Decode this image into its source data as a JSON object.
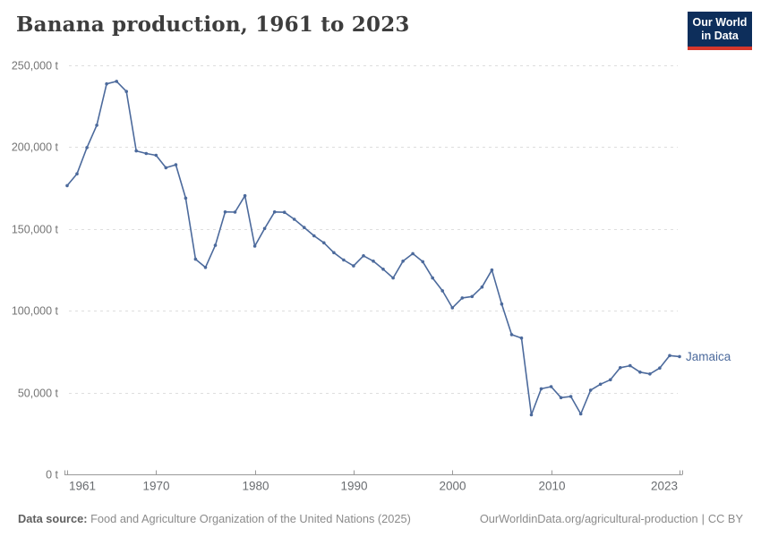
{
  "header": {
    "title": "Banana production, 1961 to 2023",
    "logo": {
      "line1": "Our World",
      "line2": "in Data"
    }
  },
  "footer": {
    "source_label": "Data source:",
    "source_text": "Food and Agriculture Organization of the United Nations (2025)",
    "link_text": "OurWorldinData.org/agricultural-production",
    "divider": "|",
    "license": "CC BY"
  },
  "colors": {
    "line": "#4C6A9C",
    "grid": "#dedede",
    "axis": "#9a9a9a",
    "tick_text": "#696c70",
    "ylabel_text": "#757575",
    "logo_bg": "#0d2e5b",
    "logo_bar": "#d6372c"
  },
  "chart_data": {
    "type": "line",
    "title": "Banana production, 1961 to 2023",
    "unit": "t",
    "xlabel": "",
    "ylabel": "",
    "xlim": [
      1961,
      2023
    ],
    "x_step": 1,
    "ylim": [
      0,
      250000
    ],
    "grid": "dashed-horizontal",
    "legend": "end-of-line-label",
    "xticks": [
      1961,
      1970,
      1980,
      1990,
      2000,
      2010,
      2023
    ],
    "yticks": [
      0,
      50000,
      100000,
      150000,
      200000,
      250000
    ],
    "ytick_labels": [
      "0 t",
      "50,000 t",
      "100,000 t",
      "150,000 t",
      "200,000 t",
      "250,000 t"
    ],
    "series": [
      {
        "name": "Jamaica",
        "color": "#4C6A9C",
        "values": [
          176500,
          183700,
          199700,
          213400,
          238700,
          240200,
          234000,
          197700,
          196100,
          195000,
          187400,
          189200,
          168800,
          131500,
          126500,
          140000,
          160400,
          160300,
          170300,
          139500,
          150300,
          160400,
          160200,
          155900,
          150900,
          145800,
          141500,
          135500,
          131000,
          127400,
          133600,
          130300,
          125400,
          120000,
          130300,
          134900,
          130000,
          120000,
          112200,
          101800,
          107800,
          108700,
          114500,
          124900,
          104100,
          85400,
          83300,
          36400,
          52300,
          53600,
          46900,
          47600,
          36900,
          51500,
          55100,
          57800,
          65200,
          66400,
          62500,
          61400,
          65000,
          72600,
          72000
        ]
      }
    ]
  }
}
